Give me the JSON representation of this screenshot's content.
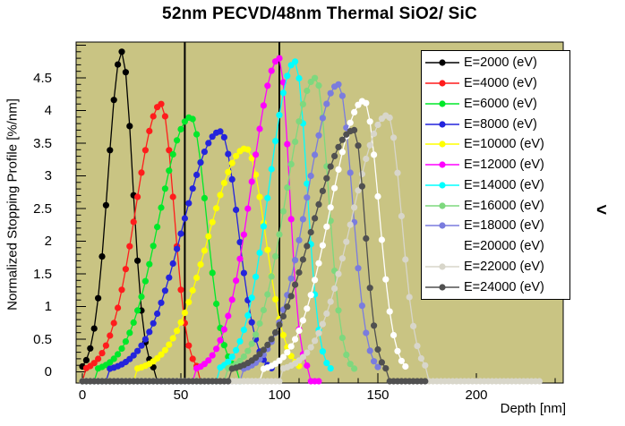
{
  "title": "52nm PECVD/48nm Thermal SiO2/ SiC",
  "side_glyph": "<",
  "x_axis": {
    "label": "Depth [nm]"
  },
  "y_axis": {
    "label": "Normalized Stopping Profile [%/nm]"
  },
  "chart_data": {
    "type": "line",
    "title": "52nm PECVD/48nm Thermal SiO2/ SiC",
    "xlabel": "Depth [nm]",
    "ylabel": "Normalized Stopping Profile [%/nm]",
    "xlim": [
      -3.2,
      243.6
    ],
    "ylim": [
      -0.17,
      5.06
    ],
    "x_major_ticks": [
      0,
      50,
      100,
      150,
      200
    ],
    "x_minor_step": 10,
    "y_major_ticks": [
      0,
      0.5,
      1,
      1.5,
      2,
      2.5,
      3,
      3.5,
      4,
      4.5
    ],
    "y_minor_step": 0.1,
    "grid": false,
    "legend_position": "top-right",
    "background_color": "#c9c483",
    "interface_lines_nm": [
      52,
      100
    ],
    "marker_step_nm": 2,
    "series": [
      {
        "name": "E=2000 (eV)",
        "energy_eV": 2000,
        "color": "#000000",
        "peak_nm": 20,
        "peak_value": 4.9,
        "sigma_left_nm": 7,
        "sigma_right_nm": 5.5,
        "x_end_nm": 46,
        "baseline": 0.03
      },
      {
        "name": "E=4000 (eV)",
        "energy_eV": 4000,
        "color": "#ff1c1c",
        "peak_nm": 40,
        "peak_value": 4.1,
        "sigma_left_nm": 13,
        "sigma_right_nm": 6.5,
        "x_end_nm": 64,
        "baseline": 0.03
      },
      {
        "name": "E=6000 (eV)",
        "energy_eV": 6000,
        "color": "#00e82a",
        "peak_nm": 55,
        "peak_value": 3.9,
        "sigma_left_nm": 16,
        "sigma_right_nm": 8,
        "x_end_nm": 80,
        "baseline": 0.03
      },
      {
        "name": "E=8000 (eV)",
        "energy_eV": 8000,
        "color": "#2424dc",
        "peak_nm": 70,
        "peak_value": 3.68,
        "sigma_left_nm": 19,
        "sigma_right_nm": 9,
        "x_end_nm": 96,
        "baseline": 0.03
      },
      {
        "name": "E=10000 (eV)",
        "energy_eV": 10000,
        "color": "#ffff00",
        "peak_nm": 83,
        "peak_value": 3.42,
        "sigma_left_nm": 19,
        "sigma_right_nm": 10,
        "x_end_nm": 110,
        "baseline": 0.03
      },
      {
        "name": "E=12000 (eV)",
        "energy_eV": 12000,
        "color": "#ff00ff",
        "peak_nm": 100,
        "peak_value": 4.8,
        "sigma_left_nm": 14,
        "sigma_right_nm": 5,
        "x_end_nm": 120,
        "baseline": 0.03
      },
      {
        "name": "E=14000 (eV)",
        "energy_eV": 14000,
        "color": "#00ffff",
        "peak_nm": 108,
        "peak_value": 4.75,
        "sigma_left_nm": 13,
        "sigma_right_nm": 6,
        "x_end_nm": 126,
        "baseline": 0.03
      },
      {
        "name": "E=16000 (eV)",
        "energy_eV": 16000,
        "color": "#7ed87e",
        "peak_nm": 118.5,
        "peak_value": 4.5,
        "sigma_left_nm": 15,
        "sigma_right_nm": 6.5,
        "x_end_nm": 138,
        "baseline": 0.03
      },
      {
        "name": "E=18000 (eV)",
        "energy_eV": 18000,
        "color": "#7a7cde",
        "peak_nm": 130,
        "peak_value": 4.4,
        "sigma_left_nm": 16,
        "sigma_right_nm": 7,
        "x_end_nm": 150,
        "baseline": 0.03
      },
      {
        "name": "E=20000 (eV)",
        "energy_eV": 20000,
        "color": "#ffffff",
        "peak_nm": 143,
        "peak_value": 4.15,
        "sigma_left_nm": 17,
        "sigma_right_nm": 7.5,
        "x_end_nm": 164,
        "baseline": 0.03
      },
      {
        "name": "E=22000 (eV)",
        "energy_eV": 22000,
        "color": "#d8d6ca",
        "peak_nm": 155,
        "peak_value": 3.93,
        "sigma_left_nm": 18,
        "sigma_right_nm": 7,
        "x_end_nm": 233,
        "baseline": 0.03
      },
      {
        "name": "E=24000 (eV)",
        "energy_eV": 24000,
        "color": "#505050",
        "peak_nm": 138,
        "peak_value": 3.7,
        "sigma_left_nm": 21,
        "sigma_right_nm": 5.5,
        "x_end_nm": 175,
        "baseline": 0.04
      }
    ]
  }
}
